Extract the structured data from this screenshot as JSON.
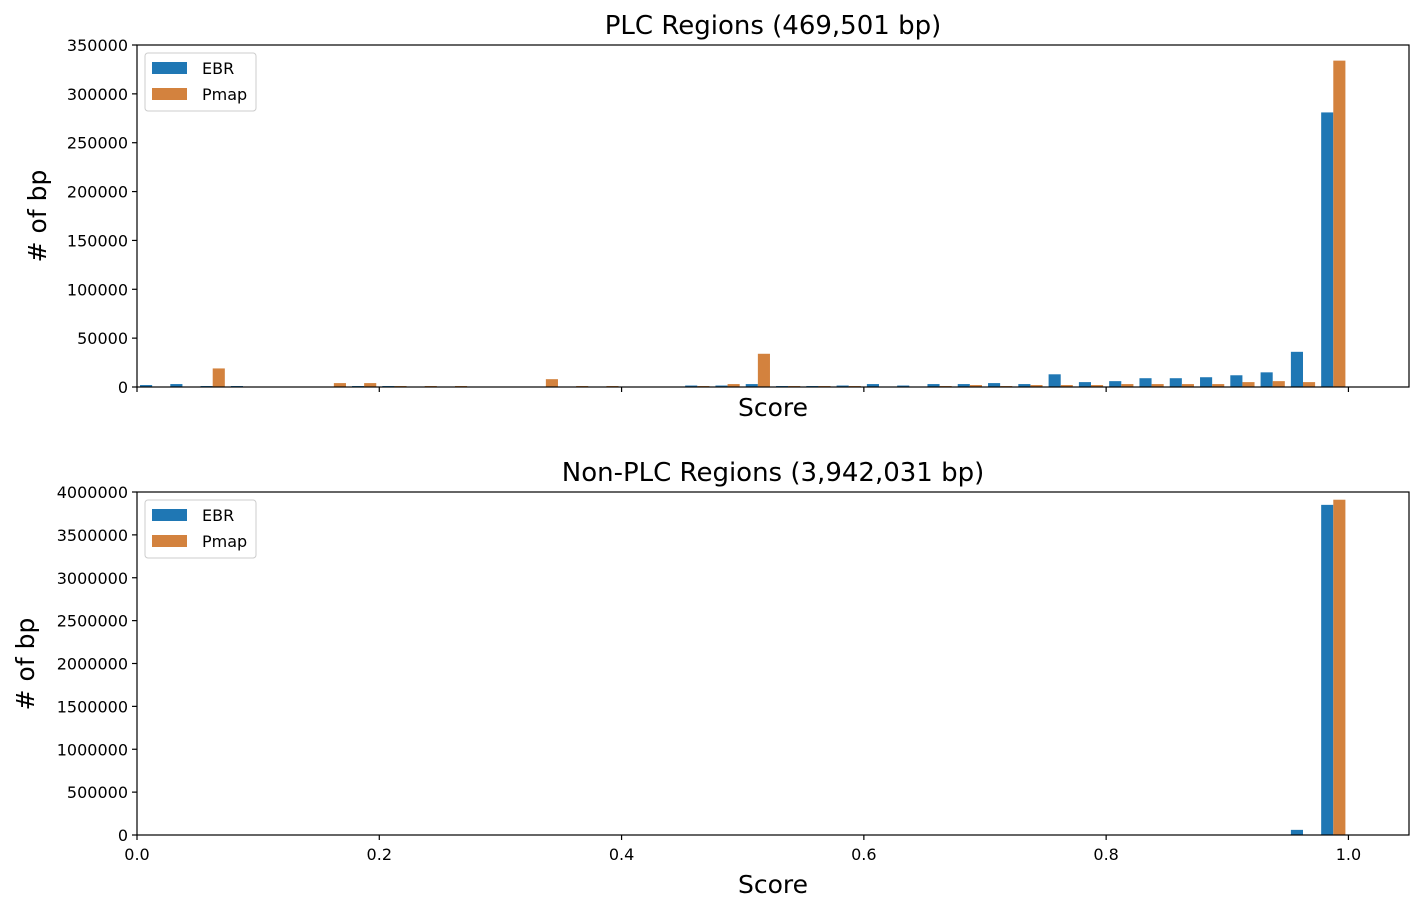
{
  "colors": {
    "EBR": "#1f77b4",
    "Pmap": "#d3823e"
  },
  "chart_data": [
    {
      "type": "bar",
      "title": "PLC Regions (469,501 bp)",
      "xlabel": "Score",
      "ylabel": "# of bp",
      "xlim": [
        0.0,
        1.05
      ],
      "ylim": [
        0,
        350000
      ],
      "yticks": [
        "0",
        "50000",
        "100000",
        "150000",
        "200000",
        "250000",
        "300000",
        "350000"
      ],
      "yticks_values": [
        0,
        50000,
        100000,
        150000,
        200000,
        250000,
        300000,
        350000
      ],
      "xticks_values": [
        0.0,
        0.2,
        0.4,
        0.6,
        0.8,
        1.0
      ],
      "xtick_labels_visible": false,
      "legend": "top-left",
      "grid": false,
      "bin_width": 0.025,
      "bin_starts": [
        0.0,
        0.025,
        0.05,
        0.075,
        0.1,
        0.125,
        0.15,
        0.175,
        0.2,
        0.225,
        0.25,
        0.275,
        0.3,
        0.325,
        0.35,
        0.375,
        0.4,
        0.425,
        0.45,
        0.475,
        0.5,
        0.525,
        0.55,
        0.575,
        0.6,
        0.625,
        0.65,
        0.675,
        0.7,
        0.725,
        0.75,
        0.775,
        0.8,
        0.825,
        0.85,
        0.875,
        0.9,
        0.925,
        0.95,
        0.975
      ],
      "series": [
        {
          "name": "EBR",
          "values": [
            2000,
            3000,
            1000,
            1000,
            0,
            500,
            0,
            1000,
            1000,
            500,
            0,
            500,
            0,
            0,
            0,
            500,
            500,
            500,
            1500,
            1500,
            3000,
            1000,
            1000,
            1500,
            3000,
            1500,
            3000,
            3000,
            4000,
            3000,
            13000,
            5000,
            6000,
            9000,
            9000,
            10000,
            12000,
            15000,
            36000,
            281000
          ]
        },
        {
          "name": "Pmap",
          "values": [
            0,
            0,
            19000,
            0,
            0,
            0,
            4000,
            4000,
            1000,
            1000,
            1000,
            0,
            500,
            8000,
            1000,
            1000,
            500,
            500,
            1000,
            3000,
            34000,
            1000,
            1000,
            1000,
            500,
            500,
            1000,
            2000,
            1000,
            2000,
            2000,
            2000,
            3000,
            3000,
            3000,
            3000,
            5000,
            6000,
            5000,
            334000
          ]
        }
      ]
    },
    {
      "type": "bar",
      "title": "Non-PLC Regions (3,942,031 bp)",
      "xlabel": "Score",
      "ylabel": "# of bp",
      "xlim": [
        0.0,
        1.05
      ],
      "ylim": [
        0,
        4000000
      ],
      "yticks": [
        "0",
        "500000",
        "1000000",
        "1500000",
        "2000000",
        "2500000",
        "3000000",
        "3500000",
        "4000000"
      ],
      "yticks_values": [
        0,
        500000,
        1000000,
        1500000,
        2000000,
        2500000,
        3000000,
        3500000,
        4000000
      ],
      "xticks": [
        "0.0",
        "0.2",
        "0.4",
        "0.6",
        "0.8",
        "1.0"
      ],
      "xticks_values": [
        0.0,
        0.2,
        0.4,
        0.6,
        0.8,
        1.0
      ],
      "legend": "top-left",
      "grid": false,
      "bin_width": 0.025,
      "bin_starts": [
        0.0,
        0.025,
        0.05,
        0.075,
        0.1,
        0.125,
        0.15,
        0.175,
        0.2,
        0.225,
        0.25,
        0.275,
        0.3,
        0.325,
        0.35,
        0.375,
        0.4,
        0.425,
        0.45,
        0.475,
        0.5,
        0.525,
        0.55,
        0.575,
        0.6,
        0.625,
        0.65,
        0.675,
        0.7,
        0.725,
        0.75,
        0.775,
        0.8,
        0.825,
        0.85,
        0.875,
        0.9,
        0.925,
        0.95,
        0.975
      ],
      "series": [
        {
          "name": "EBR",
          "values": [
            0,
            0,
            0,
            0,
            0,
            0,
            0,
            0,
            0,
            0,
            0,
            0,
            0,
            0,
            0,
            0,
            0,
            0,
            0,
            0,
            0,
            0,
            0,
            0,
            0,
            0,
            0,
            0,
            0,
            0,
            0,
            0,
            0,
            0,
            0,
            0,
            0,
            0,
            60000,
            3850000
          ]
        },
        {
          "name": "Pmap",
          "values": [
            0,
            0,
            0,
            0,
            0,
            0,
            0,
            0,
            0,
            0,
            0,
            0,
            0,
            0,
            0,
            0,
            0,
            0,
            0,
            0,
            0,
            0,
            0,
            0,
            0,
            0,
            0,
            0,
            0,
            0,
            0,
            0,
            0,
            0,
            0,
            0,
            0,
            0,
            0,
            3910000
          ]
        }
      ]
    }
  ]
}
